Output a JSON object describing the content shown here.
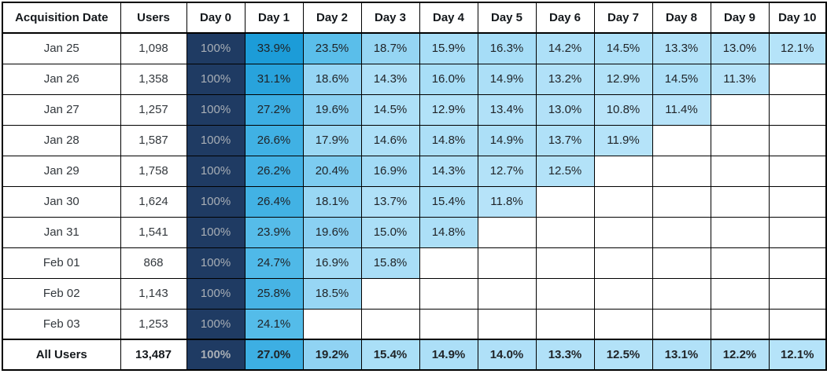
{
  "chart_data": {
    "type": "heatmap",
    "description": "Cohort retention table: percent of users returning N days after acquisition",
    "columns": [
      "Acquisition Date",
      "Users",
      "Day 0",
      "Day 1",
      "Day 2",
      "Day 3",
      "Day 4",
      "Day 5",
      "Day 6",
      "Day 7",
      "Day 8",
      "Day 9",
      "Day 10"
    ],
    "day_columns_count": 11,
    "rows": [
      {
        "date": "Jan 25",
        "users": "1,098",
        "retention": [
          100,
          33.9,
          23.5,
          18.7,
          15.9,
          16.3,
          14.2,
          14.5,
          13.3,
          13.0,
          12.1
        ],
        "is_total": false
      },
      {
        "date": "Jan 26",
        "users": "1,358",
        "retention": [
          100,
          31.1,
          18.6,
          14.3,
          16.0,
          14.9,
          13.2,
          12.9,
          14.5,
          11.3
        ],
        "is_total": false
      },
      {
        "date": "Jan 27",
        "users": "1,257",
        "retention": [
          100,
          27.2,
          19.6,
          14.5,
          12.9,
          13.4,
          13.0,
          10.8,
          11.4
        ],
        "is_total": false
      },
      {
        "date": "Jan 28",
        "users": "1,587",
        "retention": [
          100,
          26.6,
          17.9,
          14.6,
          14.8,
          14.9,
          13.7,
          11.9
        ],
        "is_total": false
      },
      {
        "date": "Jan 29",
        "users": "1,758",
        "retention": [
          100,
          26.2,
          20.4,
          16.9,
          14.3,
          12.7,
          12.5
        ],
        "is_total": false
      },
      {
        "date": "Jan 30",
        "users": "1,624",
        "retention": [
          100,
          26.4,
          18.1,
          13.7,
          15.4,
          11.8
        ],
        "is_total": false
      },
      {
        "date": "Jan 31",
        "users": "1,541",
        "retention": [
          100,
          23.9,
          19.6,
          15.0,
          14.8
        ],
        "is_total": false
      },
      {
        "date": "Feb 01",
        "users": "868",
        "retention": [
          100,
          24.7,
          16.9,
          15.8
        ],
        "is_total": false
      },
      {
        "date": "Feb 02",
        "users": "1,143",
        "retention": [
          100,
          25.8,
          18.5
        ],
        "is_total": false
      },
      {
        "date": "Feb 03",
        "users": "1,253",
        "retention": [
          100,
          24.1
        ],
        "is_total": false
      },
      {
        "date": "All Users",
        "users": "13,487",
        "retention": [
          100,
          27.0,
          19.2,
          15.4,
          14.9,
          14.0,
          13.3,
          12.5,
          13.1,
          12.2,
          12.1
        ],
        "is_total": true
      }
    ],
    "colors": {
      "day0_bg": "#1F3B63",
      "day0_text": "#A8AEB5",
      "cell_text": "#1F2327",
      "grid": "#000000",
      "scale": [
        [
          10.8,
          "#B9E4F9"
        ],
        [
          16.0,
          "#A8DEF7"
        ],
        [
          19.0,
          "#93D4F3"
        ],
        [
          21.0,
          "#74C8EE"
        ],
        [
          24.0,
          "#55BCE9"
        ],
        [
          27.0,
          "#3DAFE3"
        ],
        [
          31.0,
          "#28A3DC"
        ],
        [
          34.0,
          "#1C9CD8"
        ]
      ]
    },
    "layout": {
      "grid": "on",
      "legend": "none",
      "value_format": "percent_1dp"
    }
  }
}
